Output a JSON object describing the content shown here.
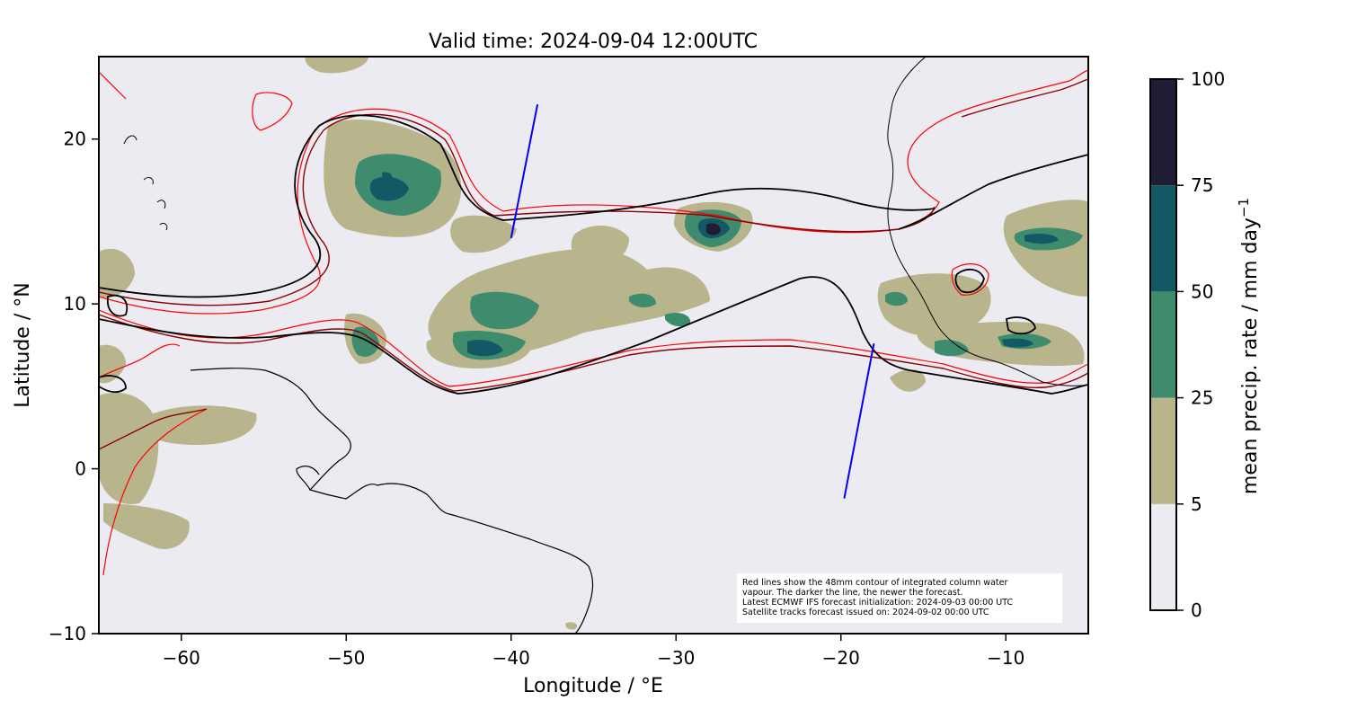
{
  "title": "Valid time: 2024-09-04 12:00UTC",
  "map": {
    "xlabel": "Longitude / °E",
    "ylabel": "Latitude / °N",
    "lon_range": [
      -65,
      -5
    ],
    "lat_range": [
      -10,
      25
    ],
    "x_ticks": [
      -60,
      -50,
      -40,
      -30,
      -20,
      -10
    ],
    "x_tick_labels": [
      "−60",
      "−50",
      "−40",
      "−30",
      "−20",
      "−10"
    ],
    "y_ticks": [
      -10,
      0,
      10,
      20
    ],
    "y_tick_labels": [
      "−10",
      "0",
      "10",
      "20"
    ],
    "background_color": "#ecebf2",
    "iwv_contour_colors": [
      "#ff0000",
      "#8b0000",
      "#000000"
    ],
    "coastline_color": "#000000",
    "satellite_track_color": "#0000ff",
    "satellite_tracks": [
      [
        [
          -38.4,
          22.1
        ],
        [
          -40.0,
          14.0
        ]
      ],
      [
        [
          -18.0,
          7.6
        ],
        [
          -19.8,
          -1.8
        ]
      ]
    ]
  },
  "precip_colorbar": {
    "label": "mean precip. rate / mm day",
    "label_sup": "−1",
    "levels": [
      0,
      5,
      25,
      50,
      75,
      100
    ],
    "tick_labels": [
      "0",
      "5",
      "25",
      "50",
      "75",
      "100"
    ],
    "colors": [
      "#ecebf2",
      "#b8b48c",
      "#3e8b6e",
      "#155865",
      "#211c36"
    ]
  },
  "note": {
    "lines": [
      "Red lines show the 48mm contour of integrated column water",
      "vapour. The darker the line, the newer the forecast.",
      "Latest ECMWF IFS forecast initialization: 2024-09-03 00:00 UTC",
      "Satellite tracks forecast issued on: 2024-09-02 00:00 UTC"
    ]
  }
}
